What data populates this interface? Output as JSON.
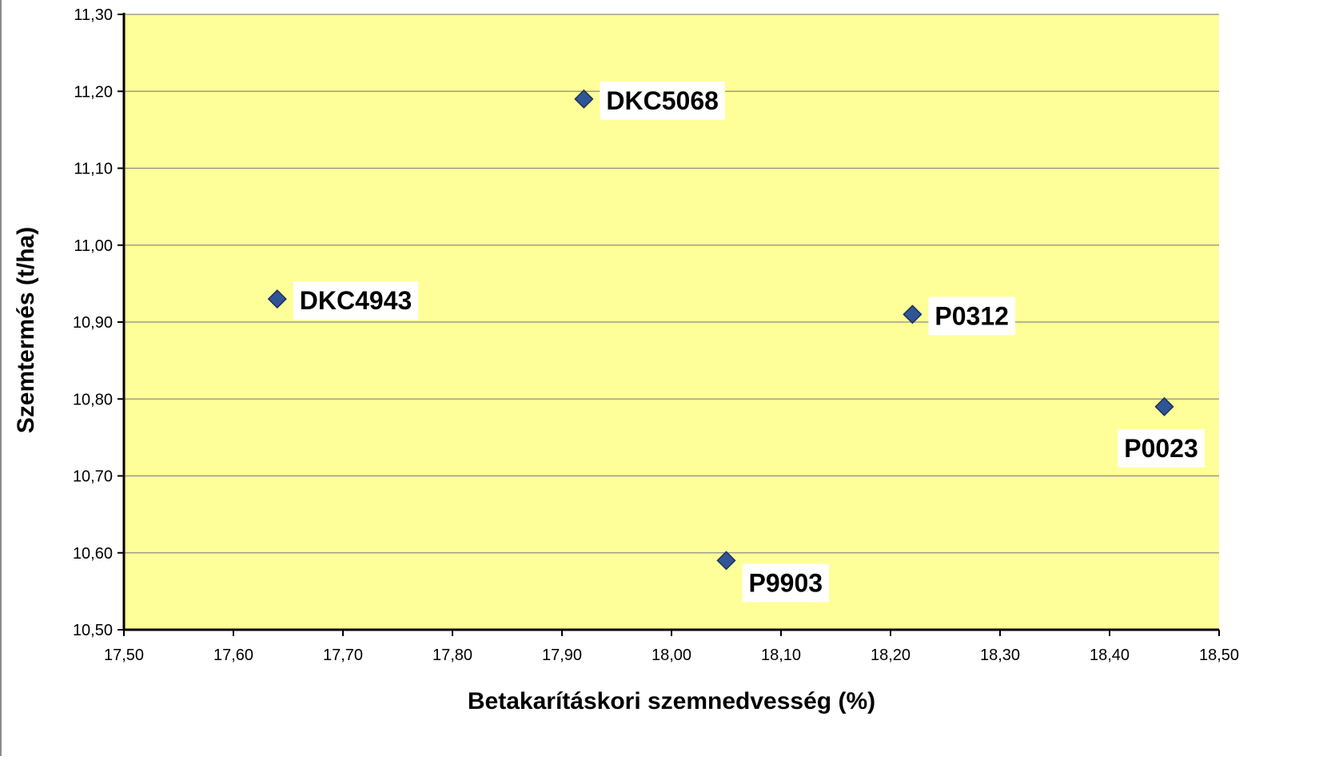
{
  "chart_data": {
    "type": "scatter",
    "title": "",
    "xlabel": "Betakarításkori szemnedvesség (%)",
    "ylabel": "Szemtermés (t/ha)",
    "xlim": [
      17.5,
      18.5
    ],
    "ylim": [
      10.5,
      11.3
    ],
    "xticks": [
      "17,50",
      "17,60",
      "17,70",
      "17,80",
      "17,90",
      "18,00",
      "18,10",
      "18,20",
      "18,30",
      "18,40",
      "18,50"
    ],
    "yticks": [
      "10,50",
      "10,60",
      "10,70",
      "10,80",
      "10,90",
      "11,00",
      "11,10",
      "11,20",
      "11,30"
    ],
    "grid": "horizontal",
    "legend": "none",
    "plot_background": "#FFFF99",
    "marker_color": "#2F5597",
    "points": [
      {
        "label": "DKC5068",
        "x": 17.92,
        "y": 11.19
      },
      {
        "label": "DKC4943",
        "x": 17.64,
        "y": 10.93
      },
      {
        "label": "P0312",
        "x": 18.22,
        "y": 10.91
      },
      {
        "label": "P0023",
        "x": 18.45,
        "y": 10.79
      },
      {
        "label": "P9903",
        "x": 18.05,
        "y": 10.59
      }
    ]
  }
}
